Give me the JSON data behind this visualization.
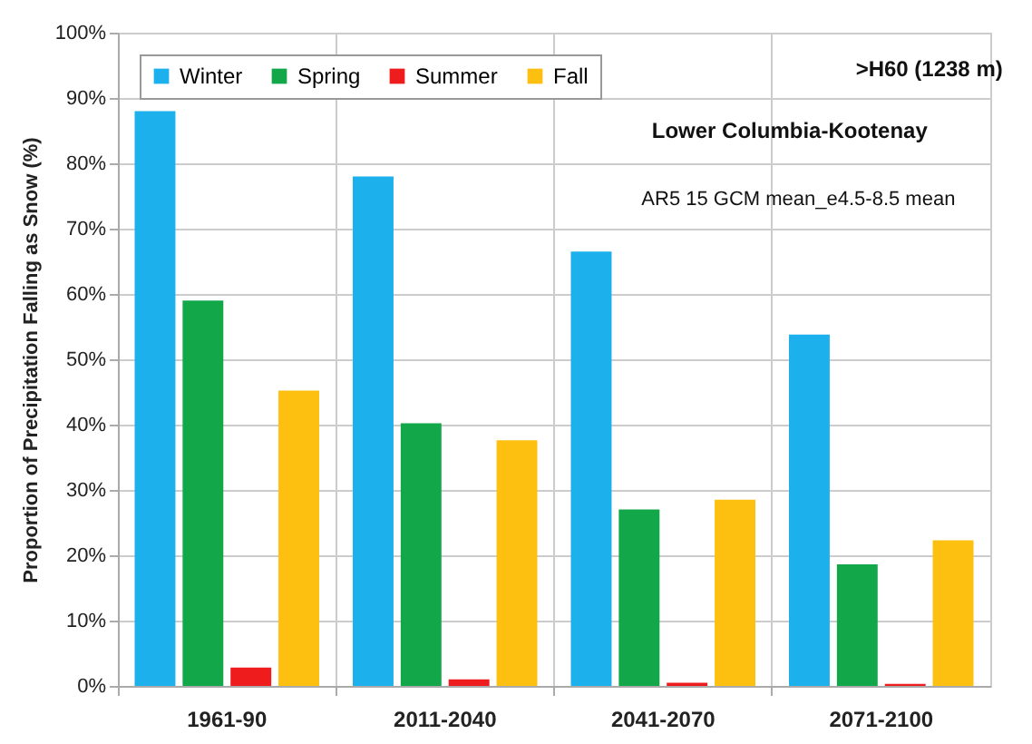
{
  "chart_data": {
    "type": "bar",
    "ylabel": "Proportion of Precipitation Falling as Snow (%)",
    "categories": [
      "1961-90",
      "2011-2040",
      "2041-2070",
      "2071-2100"
    ],
    "series": [
      {
        "name": "Winter",
        "color": "#1cb0ec",
        "values": [
          88,
          78,
          66.5,
          53.8
        ]
      },
      {
        "name": "Spring",
        "color": "#12a84a",
        "values": [
          59,
          40.2,
          27,
          18.6
        ]
      },
      {
        "name": "Summer",
        "color": "#ee1c1c",
        "values": [
          2.8,
          1,
          0.5,
          0.3
        ]
      },
      {
        "name": "Fall",
        "color": "#fdbf10",
        "values": [
          45.2,
          37.6,
          28.5,
          22.3
        ]
      }
    ],
    "ylim": [
      0,
      100
    ],
    "yticks": [
      {
        "value": 0,
        "label": "0%"
      },
      {
        "value": 10,
        "label": "10%"
      },
      {
        "value": 20,
        "label": "20%"
      },
      {
        "value": 30,
        "label": "30%"
      },
      {
        "value": 40,
        "label": "40%"
      },
      {
        "value": 50,
        "label": "50%"
      },
      {
        "value": 60,
        "label": "60%"
      },
      {
        "value": 70,
        "label": "70%"
      },
      {
        "value": 80,
        "label": "80%"
      },
      {
        "value": 90,
        "label": "90%"
      },
      {
        "value": 100,
        "label": "100%"
      }
    ],
    "annotations": [
      ">H60 (1238 m)",
      "Lower Columbia-Kootenay",
      "AR5 15 GCM mean_e4.5-8.5 mean"
    ],
    "grid": true,
    "legend": "top left"
  }
}
